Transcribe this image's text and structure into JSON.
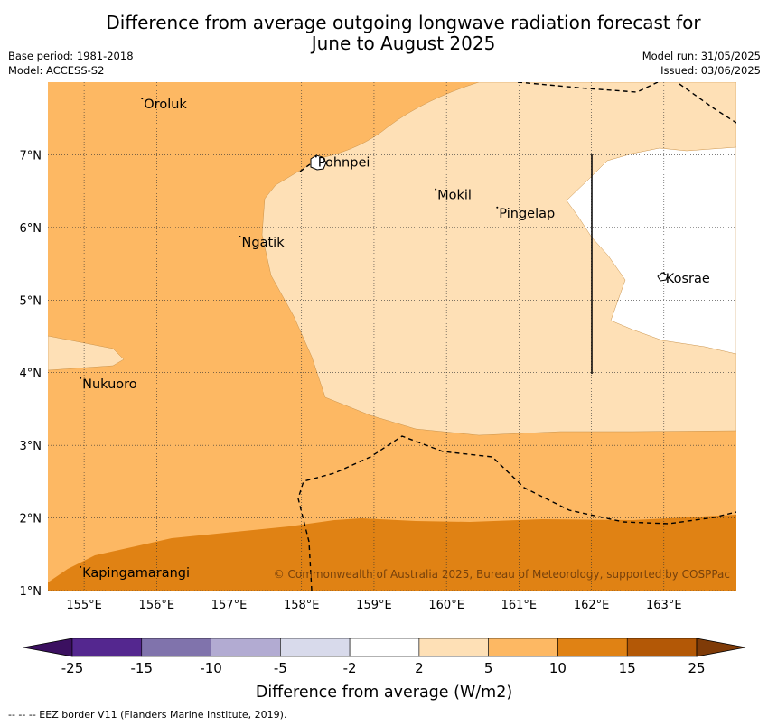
{
  "title_line1": "Difference from average outgoing longwave radiation forecast for",
  "title_line2": "June to August 2025",
  "base_period": "Base period: 1981-2018",
  "model": "Model: ACCESS-S2",
  "model_run": "Model run: 31/05/2025",
  "issued": "Issued: 03/06/2025",
  "attribution": "© Commonwealth of Australia 2025, Bureau of Meteorology, supported by COSPPac",
  "footer": "--  --  -- EEZ border V11 (Flanders Marine Institute, 2019).",
  "map": {
    "lon_range": [
      154.5,
      164.0
    ],
    "lat_range": [
      1.0,
      8.0
    ],
    "lon_ticks": [
      "155°E",
      "156°E",
      "157°E",
      "158°E",
      "159°E",
      "160°E",
      "161°E",
      "162°E",
      "163°E"
    ],
    "lat_ticks": [
      "1°N",
      "2°N",
      "3°N",
      "4°N",
      "5°N",
      "6°N",
      "7°N"
    ],
    "places": [
      {
        "name": "Oroluk",
        "lon": 155.8,
        "lat": 7.7
      },
      {
        "name": "Pohnpei",
        "lon": 158.2,
        "lat": 6.9
      },
      {
        "name": "Mokil",
        "lon": 159.85,
        "lat": 6.45
      },
      {
        "name": "Pingelap",
        "lon": 160.7,
        "lat": 6.2
      },
      {
        "name": "Ngatik",
        "lon": 157.15,
        "lat": 5.8
      },
      {
        "name": "Kosrae",
        "lon": 163.0,
        "lat": 5.3
      },
      {
        "name": "Nukuoro",
        "lon": 154.95,
        "lat": 3.85
      },
      {
        "name": "Kapingamarangi",
        "lon": 154.95,
        "lat": 1.25
      }
    ]
  },
  "colorbar": {
    "label": "Difference from average (W/m2)",
    "ticks": [
      "-25",
      "-15",
      "-10",
      "-5",
      "-2",
      "2",
      "5",
      "10",
      "15",
      "25"
    ],
    "colors": [
      "#3b1060",
      "#54278f",
      "#8073ac",
      "#b2abd2",
      "#d8daeb",
      "#ffffff",
      "#fee0b6",
      "#fdb863",
      "#e08214",
      "#b35806",
      "#7f3b08"
    ]
  }
}
